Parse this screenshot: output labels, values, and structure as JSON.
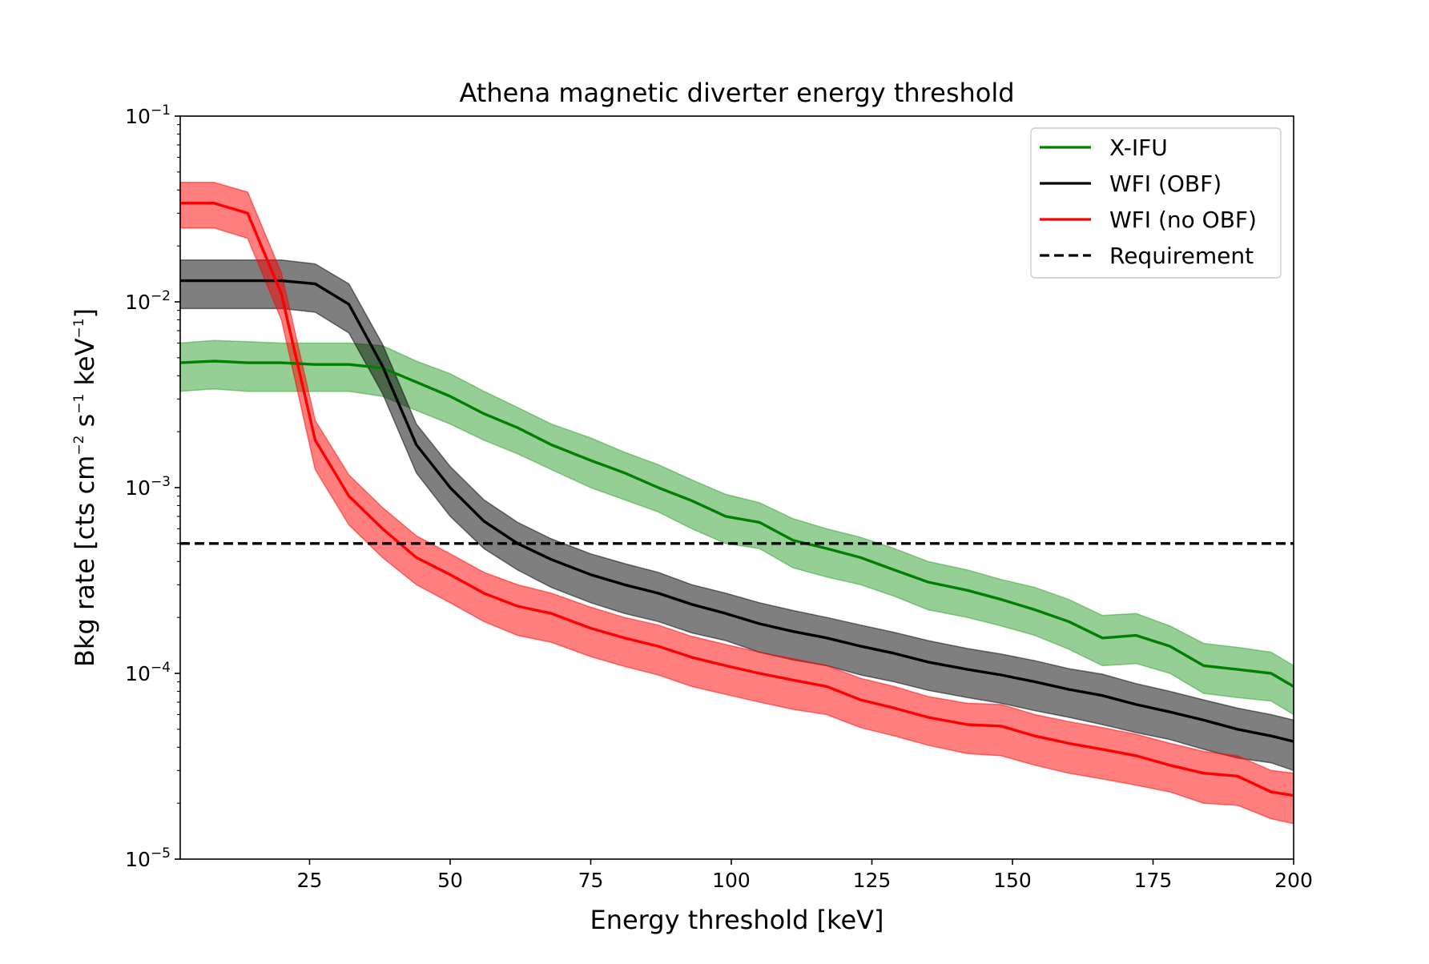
{
  "chart_data": {
    "type": "line",
    "title": "Athena magnetic diverter energy threshold",
    "xlabel": "Energy threshold [keV]",
    "ylabel": "Bkg rate [cts cm⁻² s⁻¹ keV⁻¹]",
    "ylabel_parts": {
      "base": "Bkg rate [cts cm",
      "exp1": "−2",
      "mid1": " s",
      "exp2": "−1",
      "mid2": " keV",
      "exp3": "−1",
      "end": "]"
    },
    "xlim": [
      2,
      200
    ],
    "ylim": [
      1e-05,
      0.1
    ],
    "yscale": "log",
    "grid": false,
    "legend_position": "top-right",
    "x_ticks": [
      25,
      50,
      75,
      100,
      125,
      150,
      175,
      200
    ],
    "x_tick_labels": [
      "25",
      "50",
      "75",
      "100",
      "125",
      "150",
      "175",
      "200"
    ],
    "y_ticks": [
      1e-05,
      0.0001,
      0.001,
      0.01,
      0.1
    ],
    "y_tick_labels": [
      {
        "base": "10",
        "exp": "−5"
      },
      {
        "base": "10",
        "exp": "−4"
      },
      {
        "base": "10",
        "exp": "−3"
      },
      {
        "base": "10",
        "exp": "−2"
      },
      {
        "base": "10",
        "exp": "−1"
      }
    ],
    "x": [
      2,
      8,
      14,
      20,
      26,
      32,
      38,
      44,
      50,
      56,
      62,
      68,
      75,
      81,
      87,
      93,
      99,
      105,
      111,
      117,
      123,
      129,
      135,
      142,
      148,
      154,
      160,
      166,
      172,
      178,
      184,
      190,
      196,
      200
    ],
    "series": [
      {
        "name": "X-IFU",
        "color": "#008000",
        "fill": "#2ca02c",
        "values": [
          0.0047,
          0.0048,
          0.0047,
          0.0047,
          0.0046,
          0.0046,
          0.0044,
          0.0037,
          0.0031,
          0.0025,
          0.0021,
          0.0017,
          0.0014,
          0.0012,
          0.001,
          0.00085,
          0.0007,
          0.00065,
          0.00052,
          0.00047,
          0.00042,
          0.00036,
          0.00031,
          0.00028,
          0.00025,
          0.00022,
          0.00019,
          0.000155,
          0.00016,
          0.00014,
          0.00011,
          0.000105,
          0.0001,
          8.5e-05
        ],
        "lower": [
          0.0033,
          0.0034,
          0.0033,
          0.0033,
          0.0033,
          0.0033,
          0.0031,
          0.0026,
          0.0022,
          0.0018,
          0.00152,
          0.00125,
          0.001,
          0.00086,
          0.00074,
          0.0006,
          0.0005,
          0.00047,
          0.00037,
          0.00033,
          0.0003,
          0.00026,
          0.00022,
          0.0002,
          0.00018,
          0.00016,
          0.000135,
          0.00011,
          0.000113,
          0.0001,
          7.8e-05,
          7.4e-05,
          7.1e-05,
          6e-05
        ],
        "upper": [
          0.006,
          0.0062,
          0.0061,
          0.006,
          0.006,
          0.006,
          0.0058,
          0.0048,
          0.0041,
          0.0033,
          0.0027,
          0.0022,
          0.00185,
          0.00155,
          0.00133,
          0.0011,
          0.00092,
          0.00083,
          0.00068,
          0.0006,
          0.00054,
          0.00047,
          0.0004,
          0.00036,
          0.00032,
          0.00029,
          0.00025,
          0.000205,
          0.00021,
          0.00018,
          0.000145,
          0.000138,
          0.00013,
          0.00011
        ]
      },
      {
        "name": "WFI (OBF)",
        "color": "#000000",
        "fill": "#000000",
        "values": [
          0.013,
          0.013,
          0.013,
          0.013,
          0.0125,
          0.0097,
          0.0045,
          0.0017,
          0.001,
          0.00066,
          0.0005,
          0.00041,
          0.00034,
          0.0003,
          0.00027,
          0.000235,
          0.00021,
          0.000185,
          0.000168,
          0.000155,
          0.00014,
          0.000128,
          0.000115,
          0.000105,
          9.8e-05,
          9e-05,
          8.2e-05,
          7.6e-05,
          6.8e-05,
          6.2e-05,
          5.6e-05,
          5e-05,
          4.6e-05,
          4.3e-05
        ],
        "lower": [
          0.0092,
          0.0092,
          0.0092,
          0.0092,
          0.0088,
          0.0068,
          0.0032,
          0.0012,
          0.0007,
          0.00047,
          0.00036,
          0.00029,
          0.00024,
          0.00021,
          0.00019,
          0.000165,
          0.00015,
          0.00013,
          0.000118,
          0.00011,
          9.8e-05,
          9e-05,
          8.1e-05,
          7.4e-05,
          6.9e-05,
          6.3e-05,
          5.8e-05,
          5.3e-05,
          4.8e-05,
          4.4e-05,
          3.9e-05,
          3.5e-05,
          3.3e-05,
          3e-05
        ],
        "upper": [
          0.0168,
          0.0168,
          0.0168,
          0.0168,
          0.016,
          0.0125,
          0.0059,
          0.0022,
          0.0013,
          0.00086,
          0.00065,
          0.00053,
          0.00044,
          0.00039,
          0.00035,
          0.0003,
          0.00027,
          0.00024,
          0.000218,
          0.0002,
          0.000182,
          0.000166,
          0.00015,
          0.000136,
          0.000127,
          0.000117,
          0.000106,
          9.9e-05,
          8.8e-05,
          8e-05,
          7.2e-05,
          6.5e-05,
          6e-05,
          5.6e-05
        ]
      },
      {
        "name": "WFI (no OBF)",
        "color": "#ff0000",
        "fill": "#ff0000",
        "values": [
          0.034,
          0.034,
          0.03,
          0.011,
          0.0018,
          0.0009,
          0.0006,
          0.00042,
          0.00034,
          0.00027,
          0.00023,
          0.00021,
          0.000175,
          0.000155,
          0.00014,
          0.000122,
          0.00011,
          0.0001,
          9.2e-05,
          8.5e-05,
          7.2e-05,
          6.5e-05,
          5.8e-05,
          5.3e-05,
          5.2e-05,
          4.6e-05,
          4.2e-05,
          3.9e-05,
          3.6e-05,
          3.2e-05,
          2.9e-05,
          2.8e-05,
          2.3e-05,
          2.2e-05
        ],
        "lower": [
          0.025,
          0.025,
          0.022,
          0.008,
          0.00125,
          0.00063,
          0.00042,
          0.0003,
          0.00024,
          0.00019,
          0.00016,
          0.000147,
          0.000123,
          0.000109,
          9.8e-05,
          8.5e-05,
          7.7e-05,
          7e-05,
          6.4e-05,
          6e-05,
          5.1e-05,
          4.6e-05,
          4.1e-05,
          3.7e-05,
          3.6e-05,
          3.2e-05,
          2.9e-05,
          2.7e-05,
          2.5e-05,
          2.3e-05,
          2e-05,
          1.95e-05,
          1.65e-05,
          1.55e-05
        ],
        "upper": [
          0.044,
          0.044,
          0.039,
          0.0143,
          0.0023,
          0.00117,
          0.00078,
          0.00055,
          0.00044,
          0.00035,
          0.0003,
          0.00027,
          0.000227,
          0.0002,
          0.000182,
          0.000158,
          0.000143,
          0.00013,
          0.00012,
          0.00011,
          9.4e-05,
          8.5e-05,
          7.5e-05,
          6.9e-05,
          6.8e-05,
          6e-05,
          5.5e-05,
          5.1e-05,
          4.7e-05,
          4.2e-05,
          3.8e-05,
          3.6e-05,
          3e-05,
          2.9e-05
        ]
      }
    ],
    "reference_line": {
      "name": "Requirement",
      "color": "#000000",
      "style": "dashed",
      "y": 0.0005
    },
    "legend": [
      {
        "label": "X-IFU",
        "color": "#008000",
        "style": "solid"
      },
      {
        "label": "WFI (OBF)",
        "color": "#000000",
        "style": "solid"
      },
      {
        "label": "WFI (no OBF)",
        "color": "#ff0000",
        "style": "solid"
      },
      {
        "label": "Requirement",
        "color": "#000000",
        "style": "dashed"
      }
    ]
  }
}
